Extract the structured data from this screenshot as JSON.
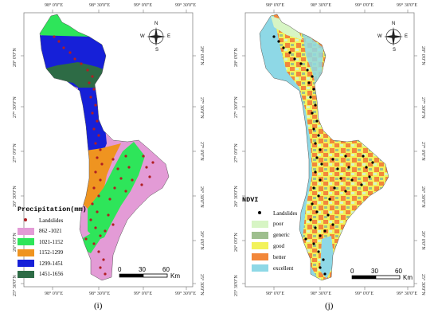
{
  "coords": {
    "top": [
      "98° 0'0\"E",
      "98° 30'0\"E",
      "99° 0'0\"E",
      "99° 30'0\"E"
    ],
    "bottom": [
      "98° 0'0\"E",
      "98° 30'0\"E",
      "99° 0'0\"E",
      "99° 30'0\"E"
    ],
    "left": [
      "28° 0'0\"N",
      "27° 30'0\"N",
      "27° 0'0\"N",
      "26° 30'0\"N",
      "26° 0'0\"N",
      "25° 30'0\"N"
    ],
    "right": [
      "28° 0'0\"N",
      "27° 30'0\"N",
      "27° 0'0\"N",
      "26° 30'0\"N",
      "26° 0'0\"N",
      "25° 30'0\"N"
    ]
  },
  "compass": {
    "n": "N",
    "s": "S",
    "e": "E",
    "w": "W"
  },
  "scale": {
    "zero": "0",
    "mid": "30",
    "max": "60",
    "unit": "Km"
  },
  "panel_i": {
    "label": "(i)",
    "legend_title": "Precipitation(mm)",
    "legend_items": [
      {
        "label": "Landslides",
        "color": "#b01e23",
        "kind": "point"
      },
      {
        "label": "862 -1021",
        "color": "#e39bd6",
        "kind": "fill"
      },
      {
        "label": "1021-1152",
        "color": "#2ee55a",
        "kind": "fill"
      },
      {
        "label": "1152-1299",
        "color": "#ef9420",
        "kind": "fill"
      },
      {
        "label": "1299-1451",
        "color": "#1620d8",
        "kind": "fill"
      },
      {
        "label": "1451-1656",
        "color": "#2d6b45",
        "kind": "fill"
      }
    ]
  },
  "panel_j": {
    "label": "(j)",
    "legend_title": "NDVI",
    "legend_items": [
      {
        "label": "Landslides",
        "color": "#000000",
        "kind": "point"
      },
      {
        "label": "poor",
        "color": "#d7f5c4",
        "kind": "fill"
      },
      {
        "label": "generic",
        "color": "#9ebf8e",
        "kind": "fill"
      },
      {
        "label": "good",
        "color": "#f2f25a",
        "kind": "fill"
      },
      {
        "label": "better",
        "color": "#f2873a",
        "kind": "fill"
      },
      {
        "label": "excellent",
        "color": "#8ed8e6",
        "kind": "fill"
      }
    ]
  }
}
